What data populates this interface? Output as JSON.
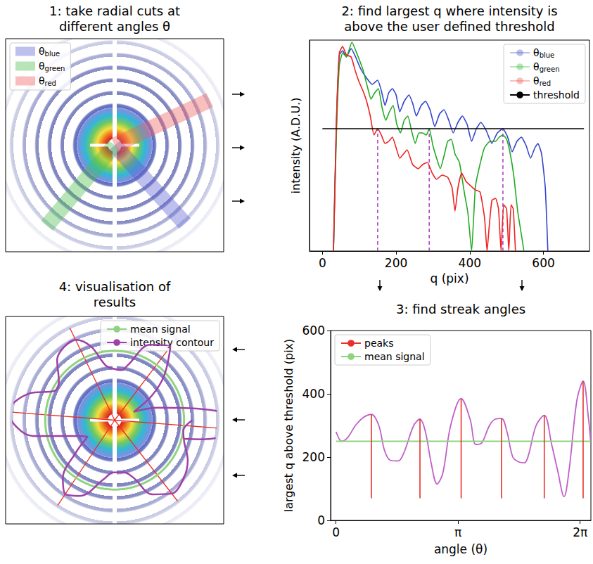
{
  "chart_data": [
    {
      "type": "pattern",
      "title": "1: take radial cuts at different angles θ",
      "rlim": [
        0,
        370
      ],
      "thetalim": [
        0,
        6.2832
      ],
      "tick_labels": false,
      "legend": "upper left",
      "series": [
        {
          "name": "θblue",
          "color": "#5a5fd0",
          "angle": 0.84
        },
        {
          "name": "θgreen",
          "color": "#4cbf4c",
          "angle": 2.27
        },
        {
          "name": "θred",
          "color": "#f06060",
          "angle": 5.84
        }
      ]
    },
    {
      "type": "line",
      "title": "2: find largest q where intensity is above the user defined threshold",
      "xlabel": "q (pix)",
      "ylabel": "intensity (A.D.U.)",
      "xlim": [
        -35,
        725
      ],
      "xticks": [
        0,
        200,
        400,
        600
      ],
      "ylim": [
        0,
        100
      ],
      "tick_labels": "x",
      "grid": false,
      "legend": "upper right",
      "series": [
        {
          "name": "θblue",
          "color": "#3344cc",
          "x": [
            30,
            38,
            46,
            55,
            65,
            78,
            90,
            105,
            120,
            135,
            150,
            160,
            170,
            180,
            190,
            200,
            210,
            222,
            235,
            245,
            255,
            268,
            280,
            292,
            305,
            318,
            330,
            343,
            355,
            368,
            380,
            393,
            405,
            418,
            430,
            445,
            460,
            475,
            490,
            503,
            515,
            528,
            540,
            553,
            565,
            577,
            585,
            595,
            605,
            612
          ],
          "values": [
            0,
            60,
            93,
            95,
            92,
            96,
            92,
            86,
            82,
            79,
            81,
            76,
            69,
            75,
            77,
            74,
            66,
            71,
            74,
            70,
            64,
            69,
            71,
            67,
            59,
            65,
            67,
            62,
            56,
            61,
            64,
            60,
            52,
            58,
            61,
            57,
            51,
            56,
            58,
            54,
            47,
            52,
            54,
            50,
            44,
            49,
            51,
            46,
            30,
            0
          ]
        },
        {
          "name": "θgreen",
          "color": "#22aa22",
          "x": [
            30,
            38,
            46,
            55,
            65,
            80,
            95,
            110,
            122,
            132,
            142,
            152,
            162,
            172,
            182,
            192,
            202,
            212,
            222,
            232,
            242,
            252,
            262,
            272,
            282,
            290,
            300,
            310,
            320,
            330,
            340,
            350,
            360,
            372,
            385,
            395,
            405,
            415,
            425,
            440,
            455,
            470,
            480,
            490,
            500,
            510,
            520,
            530,
            540,
            547
          ],
          "values": [
            0,
            55,
            88,
            94,
            92,
            99,
            93,
            86,
            78,
            72,
            75,
            77,
            68,
            62,
            66,
            69,
            60,
            56,
            62,
            64,
            57,
            51,
            56,
            56,
            55,
            58,
            50,
            44,
            39,
            45,
            52,
            53,
            46,
            42,
            28,
            18,
            0,
            30,
            39,
            49,
            52,
            52,
            54,
            55,
            53,
            46,
            35,
            19,
            8,
            0
          ]
        },
        {
          "name": "θred",
          "color": "#ee2222",
          "x": [
            30,
            38,
            46,
            55,
            65,
            78,
            90,
            100,
            110,
            120,
            130,
            140,
            150,
            160,
            170,
            180,
            190,
            200,
            210,
            220,
            230,
            245,
            260,
            272,
            285,
            298,
            310,
            325,
            340,
            352,
            360,
            368,
            378,
            390,
            402,
            415,
            428,
            440,
            447,
            452,
            460,
            470,
            478,
            485,
            492,
            500,
            506,
            512,
            518,
            524
          ],
          "values": [
            0,
            62,
            94,
            97,
            93,
            92,
            85,
            80,
            76,
            71,
            64,
            55,
            58,
            55,
            51,
            52,
            54,
            49,
            44,
            46,
            48,
            41,
            39,
            41,
            42,
            37,
            34,
            36,
            35,
            30,
            19,
            30,
            37,
            33,
            31,
            29,
            28,
            16,
            0,
            10,
            24,
            25,
            20,
            0,
            22,
            20,
            0,
            22,
            20,
            0
          ]
        },
        {
          "name": "threshold",
          "color": "#000000",
          "x": [
            0,
            710
          ],
          "values": [
            58,
            58
          ]
        }
      ],
      "largest_q": {
        "q": [
          150,
          290,
          490
        ],
        "intensity": [
          58,
          58,
          58
        ],
        "color": "#b044c4",
        "line_style": "dashed"
      }
    },
    {
      "type": "line",
      "title": "3: find streak angles",
      "xlabel": "angle (θ)",
      "ylabel": "largest q above threshold (pix)",
      "xlim": [
        -0.14,
        6.56
      ],
      "xticks": [
        0,
        {
          "value": 3.1416,
          "label": "π"
        },
        {
          "value": 6.2832,
          "label": "2π"
        }
      ],
      "ylim": [
        0,
        600
      ],
      "yticks": [
        0,
        200,
        400,
        600
      ],
      "grid": false,
      "legend": "upper left",
      "series": [
        {
          "color": "#c060c8",
          "x": [
            0,
            0.15,
            0.3,
            0.5,
            0.7,
            0.91,
            1.1,
            1.25,
            1.4,
            1.6,
            1.75,
            2.0,
            2.16,
            2.3,
            2.45,
            2.6,
            2.75,
            2.95,
            3.22,
            3.45,
            3.6,
            3.75,
            3.95,
            4.1,
            4.26,
            4.4,
            4.55,
            4.7,
            4.85,
            4.95,
            5.15,
            5.36,
            5.55,
            5.7,
            5.87,
            6.0,
            6.2,
            6.36,
            6.5,
            6.55
          ],
          "values": [
            280,
            250,
            262,
            300,
            325,
            335,
            300,
            220,
            190,
            188,
            215,
            300,
            320,
            280,
            180,
            115,
            150,
            300,
            385,
            320,
            240,
            245,
            300,
            320,
            322,
            280,
            200,
            185,
            182,
            205,
            300,
            332,
            240,
            160,
            75,
            160,
            380,
            440,
            320,
            255
          ]
        },
        {
          "name": "peaks",
          "color": "#e8302a",
          "type": "peaks",
          "base": 70,
          "x": [
            0.91,
            2.16,
            3.22,
            4.26,
            5.36,
            6.36
          ],
          "values": [
            335,
            320,
            385,
            322,
            332,
            440
          ]
        },
        {
          "name": "mean signal",
          "color": "#8fd37f",
          "x": [
            0,
            6.55
          ],
          "values": [
            250,
            250
          ]
        }
      ]
    },
    {
      "type": "polar",
      "title": "4: visualisation of results",
      "rlim": [
        0,
        370
      ],
      "thetalim": [
        0,
        6.2832
      ],
      "tick_labels": false,
      "legend": "upper right",
      "series": [
        {
          "name": "mean signal",
          "color": "#8fd37f",
          "values": [
            250
          ]
        },
        {
          "name": "intensity contour",
          "color": "#a040a8",
          "x": [
            0,
            0.15,
            0.3,
            0.5,
            0.7,
            0.91,
            1.1,
            1.25,
            1.4,
            1.6,
            1.75,
            2.0,
            2.16,
            2.3,
            2.45,
            2.6,
            2.75,
            2.95,
            3.22,
            3.45,
            3.6,
            3.75,
            3.95,
            4.1,
            4.26,
            4.4,
            4.55,
            4.7,
            4.85,
            4.95,
            5.15,
            5.36,
            5.55,
            5.7,
            5.87,
            6.0,
            6.2,
            6.36,
            6.5,
            6.55
          ],
          "values": [
            280,
            250,
            262,
            300,
            325,
            335,
            300,
            220,
            190,
            188,
            215,
            300,
            320,
            280,
            180,
            115,
            150,
            300,
            385,
            320,
            240,
            245,
            300,
            320,
            322,
            280,
            200,
            185,
            182,
            205,
            300,
            332,
            240,
            160,
            75,
            160,
            380,
            440,
            320,
            255
          ]
        }
      ],
      "peaks": {
        "color": "#e8302a",
        "x": [
          0.91,
          2.16,
          3.22,
          4.26,
          5.36,
          6.36
        ]
      }
    }
  ]
}
